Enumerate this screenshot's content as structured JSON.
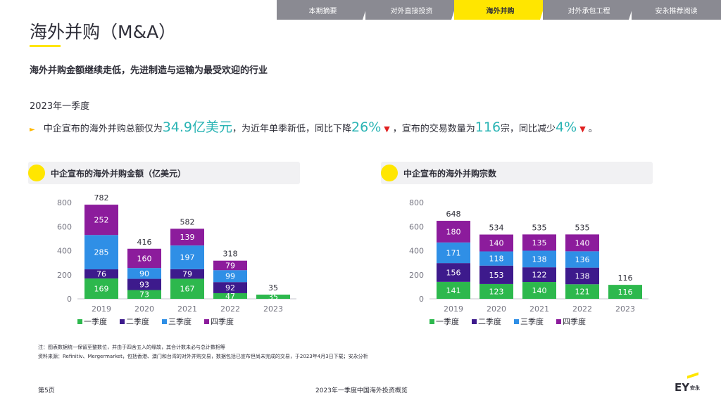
{
  "tabs": [
    {
      "label": "本期摘要",
      "active": false
    },
    {
      "label": "对外直接投资",
      "active": false
    },
    {
      "label": "海外并购",
      "active": true
    },
    {
      "label": "对外承包工程",
      "active": false
    },
    {
      "label": "安永推荐阅读",
      "active": false
    }
  ],
  "page": {
    "title": "海外并购（M&A）",
    "subtitle": "海外并购金额继续走低，先进制造与运输为最受欢迎的行业",
    "period": "2023年一季度"
  },
  "summary": {
    "bullet": "►",
    "p1": "中企宣布的海外并购总额仅为",
    "v1": "34.9亿美元",
    "p2": "，为近年单季新低，同比下降",
    "v2": "26%",
    "down1": "▼",
    "p3": "，宣布的交易数量为",
    "v3": "116",
    "p4": "宗，同比减少",
    "v4": "4%",
    "down2": "▼",
    "p5": "。"
  },
  "colors": {
    "accent": "#ffe600",
    "q1": "#2db84d",
    "q2": "#3d1a8c",
    "q3": "#2f8fe6",
    "q4": "#8c1c9c",
    "highlight": "#2ab4b4",
    "down": "#e02020"
  },
  "chart_data": [
    {
      "type": "bar",
      "stacked": true,
      "title": "中企宣布的海外并购金额（亿美元）",
      "categories": [
        "2019",
        "2020",
        "2021",
        "2022",
        "2023"
      ],
      "series": [
        {
          "name": "一季度",
          "values": [
            169,
            73,
            167,
            47,
            35
          ],
          "labels": [
            "169",
            "73",
            "167",
            "47",
            "35"
          ]
        },
        {
          "name": "二季度",
          "values": [
            76,
            93,
            79,
            92,
            null
          ],
          "labels": [
            "76",
            "93",
            "79",
            "92",
            ""
          ]
        },
        {
          "name": "三季度",
          "values": [
            285,
            90,
            197,
            99,
            null
          ],
          "labels": [
            "285",
            "90",
            "197",
            "99",
            ""
          ]
        },
        {
          "name": "四季度",
          "values": [
            252,
            160,
            139,
            79,
            null
          ],
          "labels": [
            "252",
            "160",
            "139",
            "79",
            ""
          ]
        }
      ],
      "totals": [
        "782",
        "416",
        "582",
        "318",
        "35"
      ],
      "yticks": [
        "0",
        "200",
        "400",
        "600",
        "800"
      ],
      "ylim": [
        0,
        800
      ],
      "legend": "bottom",
      "grid": false
    },
    {
      "type": "bar",
      "stacked": true,
      "title": "中企宣布的海外并购宗数",
      "categories": [
        "2019",
        "2020",
        "2021",
        "2022",
        "2023"
      ],
      "series": [
        {
          "name": "一季度",
          "values": [
            141,
            123,
            140,
            121,
            116
          ],
          "labels": [
            "141",
            "123",
            "140",
            "121",
            "116"
          ]
        },
        {
          "name": "二季度",
          "values": [
            156,
            153,
            122,
            138,
            null
          ],
          "labels": [
            "156",
            "153",
            "122",
            "138",
            ""
          ]
        },
        {
          "name": "三季度",
          "values": [
            171,
            118,
            138,
            136,
            null
          ],
          "labels": [
            "171",
            "118",
            "138",
            "136",
            ""
          ]
        },
        {
          "name": "四季度",
          "values": [
            180,
            140,
            135,
            140,
            null
          ],
          "labels": [
            "180",
            "140",
            "135",
            "140",
            ""
          ]
        }
      ],
      "totals": [
        "648",
        "534",
        "535",
        "535",
        "116"
      ],
      "yticks": [
        "0",
        "200",
        "400",
        "600",
        "800"
      ],
      "ylim": [
        0,
        800
      ],
      "legend": "bottom",
      "grid": false
    }
  ],
  "footnotes": {
    "note": "注：图表数据统一保留至整数位，并由于四舍五入的缘故，其合计数未必与总计数相等",
    "source": "资料来源：Refinitiv、Mergermarket，包括香港、澳门和台湾的对外并购交易，数据包括已宣布但尚未完成的交易，于2023年4月3日下载；安永分析"
  },
  "footer": {
    "page_no": "第5页",
    "report": "2023年一季度中国海外投资概览"
  },
  "logo": {
    "text": "EY",
    "cn": "安永"
  }
}
